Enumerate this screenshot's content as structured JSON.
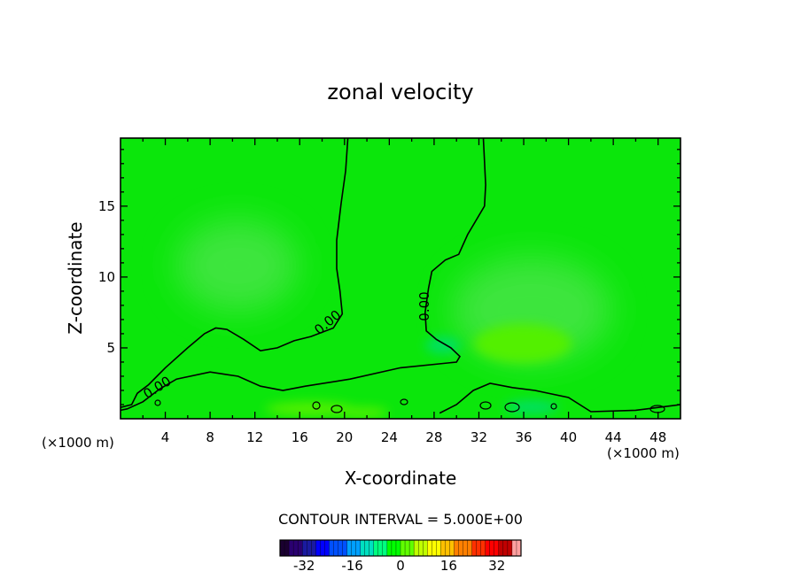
{
  "chart_data": {
    "type": "heatmap",
    "title": "zonal velocity",
    "xlabel": "X-coordinate",
    "ylabel": "Z-coordinate",
    "x_units": "(×1000 m)",
    "y_units": "(×1000 m)",
    "xlim": [
      0,
      50
    ],
    "ylim": [
      0,
      19.8
    ],
    "x_ticks": [
      4,
      8,
      12,
      16,
      20,
      24,
      28,
      32,
      36,
      40,
      44,
      48
    ],
    "y_ticks": [
      5,
      10,
      15
    ],
    "contour_interval_text": "CONTOUR INTERVAL = 5.000E+00",
    "contour_labels": [
      "0.00",
      "0.00",
      "0.00"
    ],
    "zero_contours": [
      [
        [
          20.3,
          19.8
        ],
        [
          20.1,
          17.5
        ],
        [
          19.7,
          15.2
        ],
        [
          19.3,
          12.6
        ],
        [
          19.3,
          10.6
        ],
        [
          19.6,
          9.0
        ],
        [
          19.8,
          7.4
        ],
        [
          19.0,
          6.4
        ],
        [
          17.0,
          5.8
        ],
        [
          15.5,
          5.5
        ],
        [
          14.0,
          5.0
        ],
        [
          12.5,
          4.8
        ],
        [
          11.0,
          5.6
        ],
        [
          9.5,
          6.3
        ],
        [
          8.5,
          6.4
        ],
        [
          7.5,
          6.0
        ],
        [
          6.0,
          5.0
        ],
        [
          4.0,
          3.6
        ],
        [
          2.5,
          2.4
        ],
        [
          1.5,
          1.8
        ],
        [
          1.0,
          1.0
        ],
        [
          0.0,
          0.8
        ]
      ],
      [
        [
          32.4,
          19.8
        ],
        [
          32.6,
          16.5
        ],
        [
          32.5,
          15.0
        ],
        [
          31.0,
          13.0
        ],
        [
          30.2,
          11.6
        ],
        [
          29.0,
          11.2
        ],
        [
          27.8,
          10.4
        ],
        [
          27.5,
          9.2
        ],
        [
          27.2,
          7.5
        ],
        [
          27.3,
          6.2
        ],
        [
          28.2,
          5.6
        ],
        [
          29.5,
          5.0
        ],
        [
          30.3,
          4.4
        ],
        [
          30.0,
          4.0
        ],
        [
          25.0,
          3.6
        ],
        [
          20.5,
          2.8
        ],
        [
          16.5,
          2.3
        ],
        [
          14.5,
          2.0
        ],
        [
          12.5,
          2.3
        ],
        [
          10.5,
          3.0
        ],
        [
          8.0,
          3.3
        ],
        [
          5.0,
          2.8
        ],
        [
          3.5,
          2.1
        ],
        [
          2.0,
          1.2
        ],
        [
          0.6,
          0.7
        ],
        [
          0.0,
          0.6
        ]
      ],
      [
        [
          50.0,
          1.0
        ],
        [
          46.0,
          0.6
        ],
        [
          42.0,
          0.5
        ],
        [
          40.0,
          1.5
        ],
        [
          37.0,
          2.0
        ],
        [
          35.0,
          2.2
        ],
        [
          33.0,
          2.5
        ],
        [
          31.5,
          2.0
        ],
        [
          30.0,
          1.0
        ],
        [
          28.5,
          0.4
        ]
      ]
    ],
    "colorbar": {
      "ticks": [
        -32,
        -16,
        0,
        16,
        32
      ],
      "range": [
        -40,
        40
      ],
      "colors": [
        "#1a0030",
        "#2a0070",
        "#1a1aa0",
        "#0000ff",
        "#0050ff",
        "#00a0ff",
        "#00e0c0",
        "#00ff80",
        "#00ff00",
        "#60ff00",
        "#c0ff00",
        "#ffff00",
        "#ffc000",
        "#ff8000",
        "#ff3000",
        "#ff0000",
        "#c00000",
        "#ffa0a0"
      ]
    },
    "field_colors": {
      "background": "#0be60b",
      "light_patches": "#3ee53e",
      "positive_patches": "#52f000",
      "negative_patches": "#00e060"
    }
  }
}
